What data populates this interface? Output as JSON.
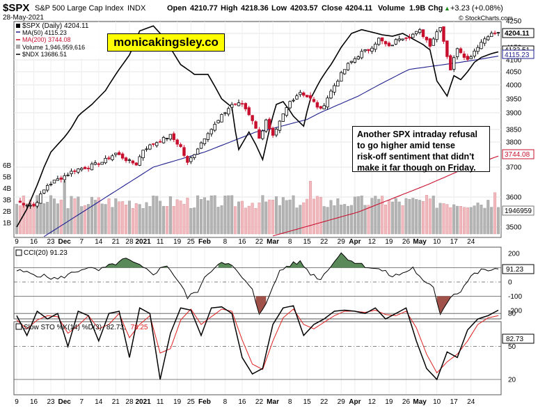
{
  "header": {
    "symbol": "$SPX",
    "name": "S&P 500 Large Cap Index",
    "exchange": "INDX",
    "date": "28-May-2021",
    "open_label": "Open",
    "open": "4210.77",
    "high_label": "High",
    "high": "4218.36",
    "low_label": "Low",
    "low": "4203.57",
    "close_label": "Close",
    "close": "4204.11",
    "volume_label": "Volume",
    "volume": "1.9B",
    "chg_label": "Chg",
    "chg": "+3.23 (+0.08%)",
    "chg_arrow": "▲",
    "credit": "© StockCharts.com"
  },
  "legend": {
    "spx": "$SPX (Daily) 4204.11",
    "ma50": "MA(50) 4115.23",
    "ma200": "MA(200) 3744.08",
    "volume": "Volume 1,946,959,616",
    "ndx": "$NDX 13686.51"
  },
  "watermark": "monicakingsley.co",
  "annotation": [
    "Another SPX intraday refusal",
    "to go higher amid tense",
    "risk-off sentiment that didn't",
    "make it far though on Friday."
  ],
  "price_tags": {
    "close": "4204.11",
    "ma50": "4115.23",
    "ndx_tag": "4132.51",
    "ma200": "3744.08",
    "volume": "1946959"
  },
  "cci_legend": "CCI(20) 91.23",
  "cci_tag": "91.23",
  "sto_legend_prefix": "Slow STO %K(14) %D(3)",
  "sto_k": "82.73,",
  "sto_d": "78.25",
  "sto_tag": "82.73",
  "colors": {
    "up": "#000000",
    "down": "#c8102e",
    "ma50": "#1f1f8f",
    "ma200": "#c8102e",
    "vol_up": "#b3b3b3",
    "vol_down": "#f0b8bf",
    "cci_fill": "#5a8a5a",
    "cci_fill_neg": "#a0524a",
    "sto_d": "#e02020",
    "ndx": "#000000"
  },
  "chart_data": [
    {
      "type": "candlestick",
      "title": "$SPX S&P 500 Large Cap Index INDX",
      "ylim": [
        3450,
        4250
      ],
      "y_ticks": [
        3500,
        3600,
        3700,
        3750,
        3800,
        3850,
        3900,
        3950,
        4000,
        4050,
        4100,
        4150,
        4200,
        4250
      ],
      "volume_ticks": [
        "1B",
        "2B",
        "3B",
        "4B",
        "5B",
        "6B"
      ],
      "x_ticks": [
        "9",
        "16",
        "23",
        "Dec",
        "7",
        "14",
        "21",
        "28",
        "2021",
        "11",
        "19",
        "25",
        "Feb",
        "8",
        "16",
        "22",
        "Mar",
        "8",
        "15",
        "22",
        "29",
        "Apr",
        "12",
        "19",
        "26",
        "May",
        "10",
        "17",
        "24"
      ],
      "close_anchors": [
        [
          0,
          3585
        ],
        [
          5,
          3570
        ],
        [
          9,
          3640
        ],
        [
          13,
          3665
        ],
        [
          17,
          3690
        ],
        [
          21,
          3702
        ],
        [
          25,
          3720
        ],
        [
          29,
          3755
        ],
        [
          33,
          3722
        ],
        [
          35,
          3712
        ],
        [
          37,
          3770
        ],
        [
          41,
          3800
        ],
        [
          45,
          3825
        ],
        [
          48,
          3780
        ],
        [
          50,
          3715
        ],
        [
          52,
          3755
        ],
        [
          56,
          3840
        ],
        [
          59,
          3875
        ],
        [
          63,
          3930
        ],
        [
          66,
          3932
        ],
        [
          69,
          3880
        ],
        [
          71,
          3820
        ],
        [
          73,
          3875
        ],
        [
          75,
          3820
        ],
        [
          77,
          3870
        ],
        [
          80,
          3940
        ],
        [
          83,
          3975
        ],
        [
          86,
          3950
        ],
        [
          89,
          3910
        ],
        [
          91,
          3955
        ],
        [
          94,
          4020
        ],
        [
          97,
          4080
        ],
        [
          101,
          4130
        ],
        [
          103,
          4140
        ],
        [
          106,
          4180
        ],
        [
          109,
          4150
        ],
        [
          112,
          4185
        ],
        [
          115,
          4190
        ],
        [
          118,
          4210
        ],
        [
          121,
          4160
        ],
        [
          124,
          4230
        ],
        [
          127,
          4060
        ],
        [
          129,
          4150
        ],
        [
          132,
          4100
        ],
        [
          135,
          4155
        ],
        [
          138,
          4195
        ],
        [
          140,
          4200
        ],
        [
          141,
          4204
        ]
      ],
      "ma50_anchors": [
        [
          0,
          3410
        ],
        [
          20,
          3555
        ],
        [
          40,
          3700
        ],
        [
          55,
          3760
        ],
        [
          70,
          3840
        ],
        [
          85,
          3880
        ],
        [
          100,
          3960
        ],
        [
          115,
          4060
        ],
        [
          130,
          4090
        ],
        [
          141,
          4115
        ]
      ],
      "ma200_anchors": [
        [
          75,
          3470
        ],
        [
          100,
          3550
        ],
        [
          120,
          3640
        ],
        [
          141,
          3744
        ]
      ],
      "ndx_anchors": [
        [
          0,
          3500
        ],
        [
          3,
          3560
        ],
        [
          6,
          3640
        ],
        [
          10,
          3760
        ],
        [
          14,
          3820
        ],
        [
          18,
          3890
        ],
        [
          22,
          3930
        ],
        [
          26,
          3980
        ],
        [
          30,
          4060
        ],
        [
          33,
          4120
        ],
        [
          36,
          4210
        ],
        [
          40,
          4230
        ],
        [
          44,
          4170
        ],
        [
          48,
          4080
        ],
        [
          52,
          4040
        ],
        [
          56,
          4040
        ],
        [
          60,
          3950
        ],
        [
          63,
          3920
        ],
        [
          65,
          3770
        ],
        [
          68,
          3840
        ],
        [
          70,
          3790
        ],
        [
          72,
          3730
        ],
        [
          74,
          3850
        ],
        [
          76,
          3930
        ],
        [
          78,
          3940
        ],
        [
          81,
          3890
        ],
        [
          84,
          3860
        ],
        [
          86,
          3950
        ],
        [
          89,
          4020
        ],
        [
          92,
          4080
        ],
        [
          95,
          4150
        ],
        [
          98,
          4200
        ],
        [
          101,
          4215
        ],
        [
          104,
          4205
        ],
        [
          107,
          4195
        ],
        [
          110,
          4190
        ],
        [
          113,
          4200
        ],
        [
          116,
          4180
        ],
        [
          119,
          4160
        ],
        [
          121,
          4140
        ],
        [
          123,
          4015
        ],
        [
          126,
          3960
        ],
        [
          128,
          4035
        ],
        [
          130,
          4020
        ],
        [
          132,
          4050
        ],
        [
          134,
          4090
        ],
        [
          136,
          4110
        ],
        [
          139,
          4125
        ],
        [
          141,
          4132
        ]
      ]
    },
    {
      "type": "line",
      "title": "CCI(20) 91.23",
      "ylim": [
        -250,
        250
      ],
      "y_ticks": [
        -200,
        -100,
        0,
        100,
        200
      ],
      "last": 91.23,
      "anchors": [
        [
          0,
          80
        ],
        [
          4,
          60
        ],
        [
          8,
          40
        ],
        [
          12,
          20
        ],
        [
          16,
          60
        ],
        [
          20,
          100
        ],
        [
          24,
          80
        ],
        [
          28,
          120
        ],
        [
          32,
          160
        ],
        [
          36,
          110
        ],
        [
          40,
          60
        ],
        [
          44,
          120
        ],
        [
          48,
          -20
        ],
        [
          50,
          -110
        ],
        [
          53,
          -60
        ],
        [
          56,
          60
        ],
        [
          60,
          150
        ],
        [
          63,
          110
        ],
        [
          66,
          30
        ],
        [
          69,
          -60
        ],
        [
          71,
          -220
        ],
        [
          74,
          -100
        ],
        [
          77,
          80
        ],
        [
          80,
          120
        ],
        [
          83,
          140
        ],
        [
          86,
          60
        ],
        [
          89,
          20
        ],
        [
          92,
          120
        ],
        [
          95,
          200
        ],
        [
          98,
          150
        ],
        [
          101,
          120
        ],
        [
          104,
          100
        ],
        [
          107,
          80
        ],
        [
          110,
          40
        ],
        [
          113,
          60
        ],
        [
          116,
          100
        ],
        [
          119,
          0
        ],
        [
          122,
          -40
        ],
        [
          124,
          -220
        ],
        [
          127,
          -100
        ],
        [
          130,
          -60
        ],
        [
          133,
          40
        ],
        [
          136,
          80
        ],
        [
          139,
          85
        ],
        [
          141,
          91
        ]
      ]
    },
    {
      "type": "line",
      "title": "Slow STO %K(14) %D(3)",
      "ylim": [
        10,
        90
      ],
      "y_ticks": [
        20,
        50,
        80
      ],
      "last_k": 82.73,
      "last_d": 78.25,
      "k_anchors": [
        [
          0,
          78
        ],
        [
          3,
          60
        ],
        [
          6,
          82
        ],
        [
          9,
          75
        ],
        [
          12,
          80
        ],
        [
          15,
          50
        ],
        [
          18,
          82
        ],
        [
          21,
          78
        ],
        [
          24,
          55
        ],
        [
          27,
          80
        ],
        [
          30,
          82
        ],
        [
          33,
          40
        ],
        [
          36,
          85
        ],
        [
          39,
          80
        ],
        [
          42,
          20
        ],
        [
          45,
          62
        ],
        [
          48,
          85
        ],
        [
          51,
          83
        ],
        [
          54,
          60
        ],
        [
          57,
          85
        ],
        [
          60,
          86
        ],
        [
          63,
          80
        ],
        [
          66,
          40
        ],
        [
          69,
          25
        ],
        [
          72,
          30
        ],
        [
          75,
          70
        ],
        [
          78,
          85
        ],
        [
          81,
          87
        ],
        [
          84,
          60
        ],
        [
          87,
          70
        ],
        [
          90,
          75
        ],
        [
          93,
          82
        ],
        [
          96,
          83
        ],
        [
          99,
          82
        ],
        [
          102,
          80
        ],
        [
          105,
          85
        ],
        [
          108,
          75
        ],
        [
          111,
          80
        ],
        [
          114,
          85
        ],
        [
          117,
          55
        ],
        [
          120,
          30
        ],
        [
          123,
          20
        ],
        [
          126,
          45
        ],
        [
          129,
          40
        ],
        [
          132,
          65
        ],
        [
          135,
          75
        ],
        [
          138,
          78
        ],
        [
          141,
          83
        ]
      ],
      "d_anchors": [
        [
          0,
          74
        ],
        [
          3,
          66
        ],
        [
          6,
          74
        ],
        [
          9,
          78
        ],
        [
          12,
          77
        ],
        [
          15,
          62
        ],
        [
          18,
          69
        ],
        [
          21,
          78
        ],
        [
          24,
          66
        ],
        [
          27,
          70
        ],
        [
          30,
          80
        ],
        [
          33,
          58
        ],
        [
          36,
          70
        ],
        [
          39,
          78
        ],
        [
          42,
          44
        ],
        [
          45,
          48
        ],
        [
          48,
          74
        ],
        [
          51,
          84
        ],
        [
          54,
          70
        ],
        [
          57,
          77
        ],
        [
          60,
          84
        ],
        [
          63,
          82
        ],
        [
          66,
          56
        ],
        [
          69,
          34
        ],
        [
          72,
          29
        ],
        [
          75,
          55
        ],
        [
          78,
          76
        ],
        [
          81,
          84
        ],
        [
          84,
          70
        ],
        [
          87,
          66
        ],
        [
          90,
          72
        ],
        [
          93,
          78
        ],
        [
          96,
          82
        ],
        [
          99,
          82
        ],
        [
          102,
          81
        ],
        [
          105,
          83
        ],
        [
          108,
          79
        ],
        [
          111,
          78
        ],
        [
          114,
          82
        ],
        [
          117,
          67
        ],
        [
          120,
          43
        ],
        [
          123,
          26
        ],
        [
          126,
          36
        ],
        [
          129,
          43
        ],
        [
          132,
          55
        ],
        [
          135,
          70
        ],
        [
          138,
          76
        ],
        [
          141,
          78
        ]
      ]
    }
  ]
}
